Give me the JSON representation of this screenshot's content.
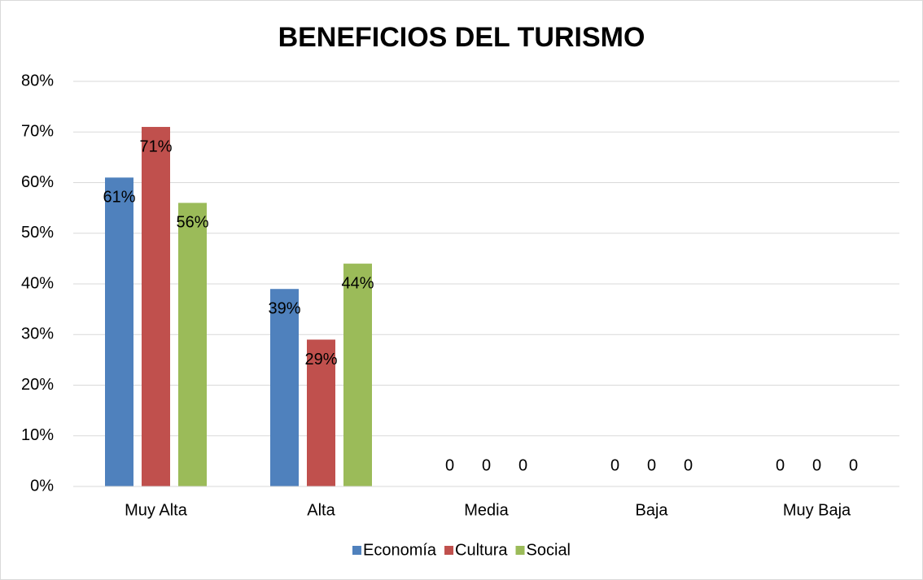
{
  "chart_data": {
    "type": "bar",
    "title": "BENEFICIOS DEL TURISMO",
    "categories": [
      "Muy Alta",
      "Alta",
      "Media",
      "Baja",
      "Muy Baja"
    ],
    "series": [
      {
        "name": "Economía",
        "color": "#4f81bd",
        "values": [
          61,
          39,
          0,
          0,
          0
        ],
        "value_labels": [
          "61%",
          "39%",
          "0",
          "0",
          "0"
        ]
      },
      {
        "name": "Cultura",
        "color": "#c0504d",
        "values": [
          71,
          29,
          0,
          0,
          0
        ],
        "value_labels": [
          "71%",
          "29%",
          "0",
          "0",
          "0"
        ]
      },
      {
        "name": "Social",
        "color": "#9bbb59",
        "values": [
          56,
          44,
          0,
          0,
          0
        ],
        "value_labels": [
          "56%",
          "44%",
          "0",
          "0",
          "0"
        ]
      }
    ],
    "ylim": [
      0,
      80
    ],
    "yticks": [
      {
        "value": 0,
        "label": "0%"
      },
      {
        "value": 10,
        "label": "10%"
      },
      {
        "value": 20,
        "label": "20%"
      },
      {
        "value": 30,
        "label": "30%"
      },
      {
        "value": 40,
        "label": "40%"
      },
      {
        "value": 50,
        "label": "50%"
      },
      {
        "value": 60,
        "label": "60%"
      },
      {
        "value": 70,
        "label": "70%"
      },
      {
        "value": 80,
        "label": "80%"
      }
    ],
    "grid": true,
    "legend": "bottom"
  }
}
